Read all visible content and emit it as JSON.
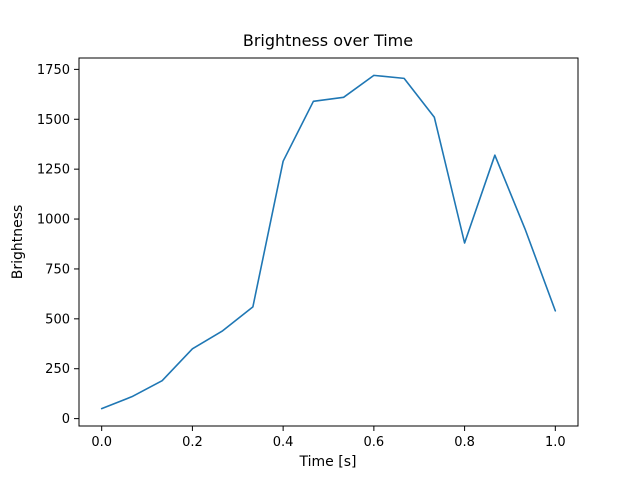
{
  "chart_data": {
    "type": "line",
    "title": "Brightness over Time",
    "xlabel": "Time [s]",
    "ylabel": "Brightness",
    "x": [
      0.0,
      0.0667,
      0.1333,
      0.2,
      0.2667,
      0.3333,
      0.4,
      0.4667,
      0.5333,
      0.6,
      0.6667,
      0.7333,
      0.8,
      0.8667,
      0.9333,
      1.0
    ],
    "y": [
      50,
      110,
      190,
      350,
      440,
      560,
      1290,
      1590,
      1610,
      1720,
      1705,
      1510,
      880,
      1320,
      950,
      540
    ],
    "xlim": [
      -0.05,
      1.05
    ],
    "ylim": [
      -37,
      1807
    ],
    "xticks": [
      0.0,
      0.2,
      0.4,
      0.6,
      0.8,
      1.0
    ],
    "xtick_labels": [
      "0.0",
      "0.2",
      "0.4",
      "0.6",
      "0.8",
      "1.0"
    ],
    "yticks": [
      0,
      250,
      500,
      750,
      1000,
      1250,
      1500,
      1750
    ],
    "ytick_labels": [
      "0",
      "250",
      "500",
      "750",
      "1000",
      "1250",
      "1500",
      "1750"
    ],
    "line_color": "#1f77b4",
    "spine_color": "#000000",
    "grid": false,
    "legend_position": "none"
  }
}
